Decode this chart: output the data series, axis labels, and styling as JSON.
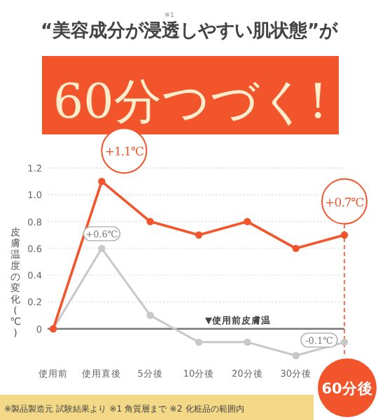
{
  "chart_data": {
    "type": "line",
    "title": "“美容成分が浸透しやすい肌状態”が",
    "subtitle": "60分つづく!",
    "ylabel": "皮膚温度の変化(℃)",
    "categories": [
      "使用前",
      "使用直後",
      "5分後",
      "10分後",
      "20分後",
      "30分後",
      "60分後"
    ],
    "series": [
      {
        "color": "#c8c8c8",
        "values": [
          0,
          0.6,
          0.1,
          -0.1,
          -0.1,
          -0.2,
          -0.1
        ]
      },
      {
        "color": "#f2552c",
        "values": [
          0,
          1.1,
          0.8,
          0.7,
          0.8,
          0.6,
          0.7
        ]
      }
    ],
    "ylim": [
      -0.2,
      1.2
    ],
    "yticks": [
      0,
      0.2,
      0.4,
      0.6,
      0.8,
      {
        "value": 1,
        "label": "1.0"
      },
      1.2
    ],
    "grid": "y",
    "marker": "circle",
    "line_style": "solid",
    "ref_lines": [
      {
        "axis": "y",
        "value": 0,
        "label": "▼使用前皮膚温",
        "color": "#777777",
        "line_style": "solid"
      },
      {
        "axis": "x",
        "value": "60分後",
        "color": "#f2552c",
        "line_style": "dashed"
      }
    ],
    "annotations": [
      "※1",
      "※製品製造元 試験結果より ※1 角質層まで ※2 化粧品の範囲内",
      {
        "text": "+1.1℃",
        "x": "使用直後",
        "y": 1.1
      },
      {
        "text": "+0.6℃",
        "x": "使用直後",
        "y": 0.6
      },
      {
        "text": "+0.7℃",
        "x": "60分後",
        "y": 0.7
      },
      {
        "text": "-0.1℃",
        "x": "60分後",
        "y": -0.1
      }
    ]
  }
}
